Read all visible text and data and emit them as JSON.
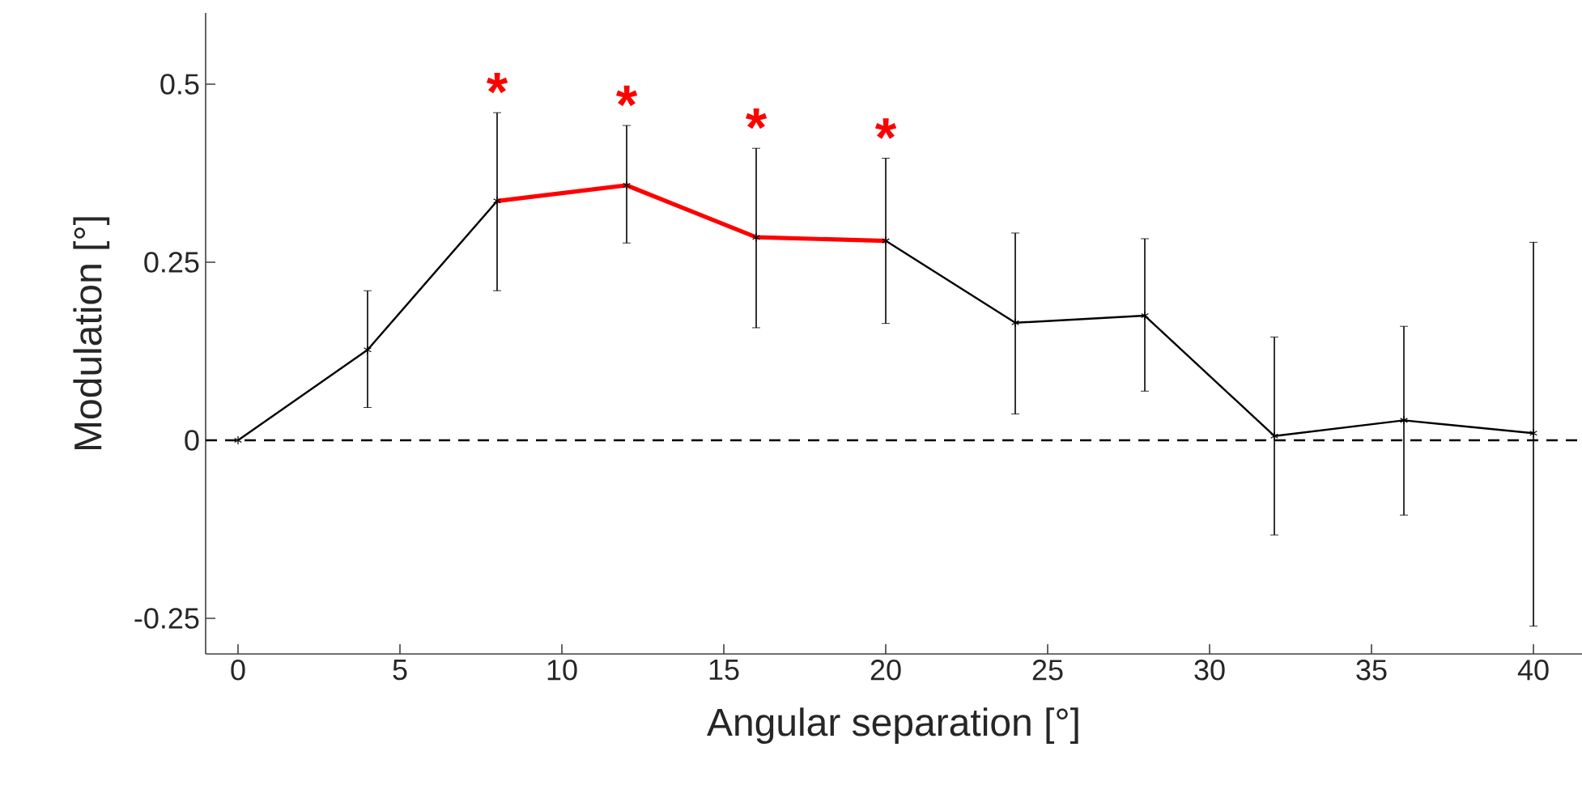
{
  "chart_data": {
    "type": "line",
    "xlabel": "Angular separation [°]",
    "ylabel": "Modulation  [°]",
    "x": [
      0,
      4,
      8,
      12,
      16,
      20,
      24,
      28,
      32,
      36,
      40
    ],
    "series": [
      {
        "color": "#000000",
        "values": [
          0,
          0.127,
          0.336,
          0.358,
          0.285,
          0.28,
          0.165,
          0.175,
          0.006,
          0.028,
          0.01
        ],
        "errors": [
          null,
          [
            0.046,
            0.21
          ],
          [
            0.21,
            0.46
          ],
          [
            0.277,
            0.442
          ],
          [
            0.158,
            0.41
          ],
          [
            0.164,
            0.396
          ],
          [
            0.037,
            0.291
          ],
          [
            0.069,
            0.283
          ],
          [
            -0.133,
            0.145
          ],
          [
            -0.105,
            0.16
          ],
          [
            -0.261,
            0.278
          ]
        ]
      },
      {
        "color": "#ff0000",
        "x": [
          8,
          12,
          16,
          20
        ],
        "values": [
          0.336,
          0.358,
          0.285,
          0.28
        ],
        "marker": "none"
      }
    ],
    "annotations": [
      "*",
      "*",
      "*",
      "*"
    ],
    "ref_lines": [
      {
        "axis": "y",
        "value": 0,
        "line_style": "dashed"
      }
    ],
    "xlim": [
      -1,
      41.5
    ],
    "ylim": [
      -0.3,
      0.6
    ],
    "xticks": [
      0,
      5,
      10,
      15,
      20,
      25,
      30,
      35,
      40
    ],
    "yticks": [
      -0.25,
      0,
      0.25,
      0.5
    ],
    "marker": "cross",
    "line_style": "solid",
    "grid": false
  }
}
